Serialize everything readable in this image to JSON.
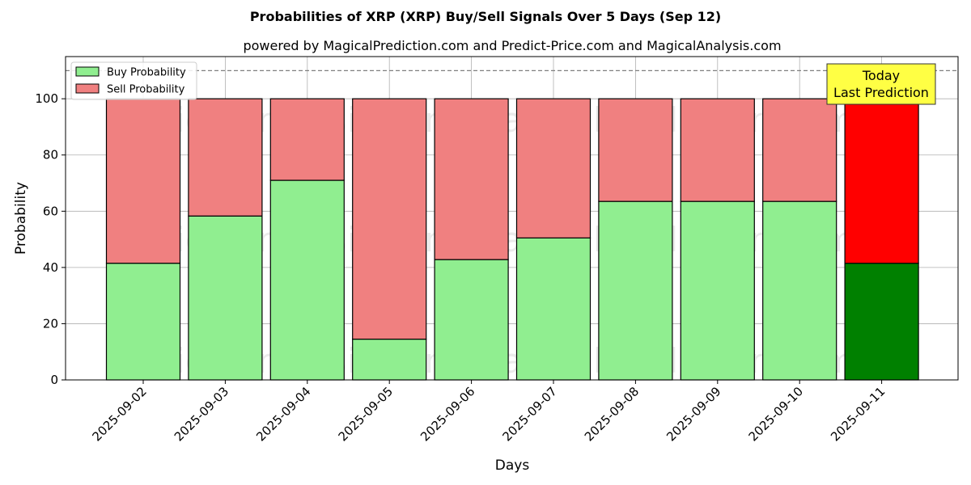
{
  "chart_data": {
    "type": "bar",
    "stacked": true,
    "title": "Probabilities of XRP (XRP) Buy/Sell Signals Over 5 Days (Sep 12)",
    "subtitle": "powered by MagicalPrediction.com and Predict-Price.com and MagicalAnalysis.com",
    "xlabel": "Days",
    "ylabel": "Probability",
    "ylim": [
      0,
      115
    ],
    "yticks": [
      0,
      20,
      40,
      60,
      80,
      100
    ],
    "grid": true,
    "legend_position": "top-left",
    "reference_line": {
      "y": 110,
      "style": "dashed"
    },
    "categories": [
      "2025-09-02",
      "2025-09-03",
      "2025-09-04",
      "2025-09-05",
      "2025-09-06",
      "2025-09-07",
      "2025-09-08",
      "2025-09-09",
      "2025-09-10",
      "2025-09-11"
    ],
    "series": [
      {
        "name": "Buy Probability",
        "color": "#90ee90",
        "highlight_color": "#008000",
        "values": [
          41.5,
          58.3,
          71.0,
          14.5,
          42.8,
          50.5,
          63.5,
          63.5,
          63.5,
          41.5
        ]
      },
      {
        "name": "Sell Probability",
        "color": "#f08080",
        "highlight_color": "#ff0000",
        "values": [
          58.5,
          41.7,
          29.0,
          85.5,
          57.2,
          49.5,
          36.5,
          36.5,
          36.5,
          58.5
        ]
      }
    ],
    "highlight_index": 9,
    "annotation": {
      "lines": [
        "Today",
        "Last Prediction"
      ],
      "background": "#ffff44"
    },
    "watermarks": [
      "MagicalAnalysis.com",
      "MagicalPrediction.com"
    ]
  }
}
